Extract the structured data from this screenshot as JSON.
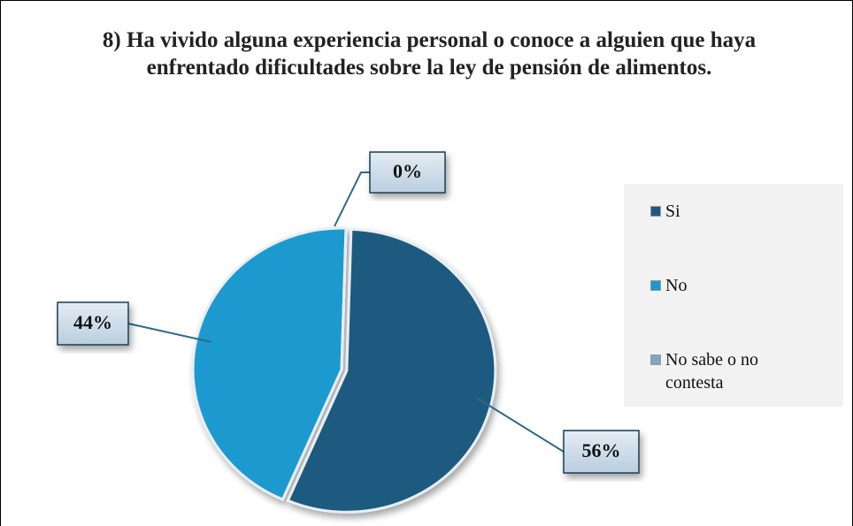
{
  "chart_data": {
    "type": "pie",
    "title": "8) Ha vivido alguna experiencia personal o conoce a alguien que haya enfrentado dificultades sobre la ley de pensión de alimentos.",
    "categories": [
      "Si",
      "No",
      "No sabe o no contesta"
    ],
    "values": [
      56,
      44,
      0
    ],
    "value_labels": [
      "56%",
      "44%",
      "0%"
    ],
    "colors": [
      "#1b5a80",
      "#1a9ad0",
      "#7fa6c2"
    ],
    "legend": "right"
  }
}
